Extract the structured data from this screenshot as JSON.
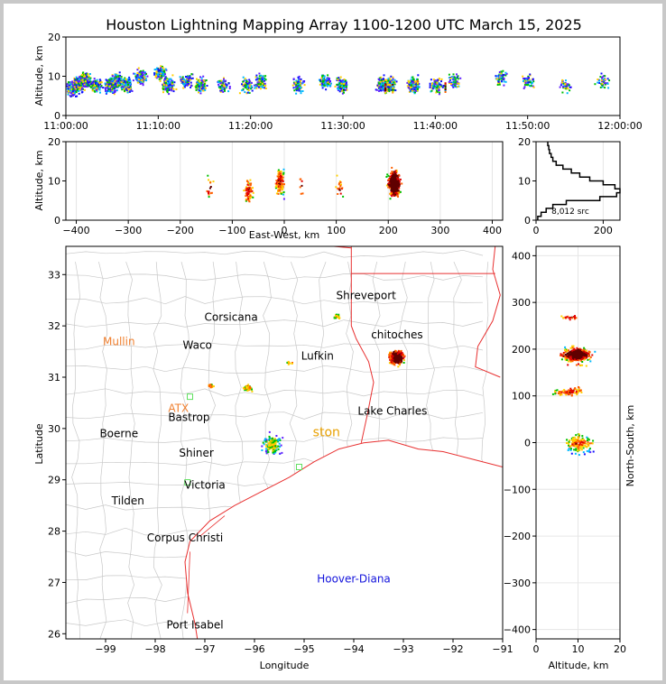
{
  "figure": {
    "title": "Houston Lightning Mapping Array 1100-1200 UTC March 15, 2025",
    "time_panel": {
      "ylabel": "Altitude, km",
      "yticks": [
        "0",
        "10",
        "20"
      ],
      "xticks": [
        "11:00:00",
        "11:10:00",
        "11:20:00",
        "11:30:00",
        "11:40:00",
        "11:50:00",
        "12:00:00"
      ]
    },
    "ew_panel": {
      "xlabel": "East-West, km",
      "ylabel": "Altitude, km",
      "xticks": [
        "−400",
        "−300",
        "−200",
        "−100",
        "0",
        "100",
        "200",
        "300",
        "400"
      ],
      "yticks": [
        "0",
        "10",
        "20"
      ]
    },
    "hist_panel": {
      "xticks": [
        "0",
        "200"
      ],
      "yticks": [
        "0",
        "10",
        "20"
      ],
      "count_label": "8,012 src"
    },
    "map_panel": {
      "xlabel": "Longitude",
      "ylabel": "Latitude",
      "xticks": [
        "−99",
        "−98",
        "−97",
        "−96",
        "−95",
        "−94",
        "−93",
        "−92",
        "−91"
      ],
      "yticks": [
        "26",
        "27",
        "28",
        "29",
        "30",
        "31",
        "32",
        "33"
      ],
      "cities": [
        {
          "name": "Shreveport",
          "lon": -93.75,
          "lat": 32.52
        },
        {
          "name": "Corsicana",
          "lon": -96.47,
          "lat": 32.1
        },
        {
          "name": "Waco",
          "lon": -97.15,
          "lat": 31.55
        },
        {
          "name": "Lufkin",
          "lon": -94.73,
          "lat": 31.34
        },
        {
          "name": "chitoches",
          "lon": -93.13,
          "lat": 31.76
        },
        {
          "name": "Lake Charles",
          "lon": -93.22,
          "lat": 30.27
        },
        {
          "name": "Boerne",
          "lon": -98.73,
          "lat": 29.83
        },
        {
          "name": "Bastrop",
          "lon": -97.32,
          "lat": 30.15
        },
        {
          "name": "Shiner",
          "lon": -97.17,
          "lat": 29.45
        },
        {
          "name": "Victoria",
          "lon": -97.0,
          "lat": 28.83
        },
        {
          "name": "Tilden",
          "lon": -98.55,
          "lat": 28.52
        },
        {
          "name": "Corpus Christi",
          "lon": -97.4,
          "lat": 27.8
        },
        {
          "name": "Port Isabel",
          "lon": -97.2,
          "lat": 26.1
        }
      ],
      "radar_labels": [
        {
          "name": "Mullin",
          "lon": -98.73,
          "lat": 31.62,
          "color": "#f08030"
        },
        {
          "name": "ATX",
          "lon": -97.53,
          "lat": 30.32,
          "color": "#f08030"
        },
        {
          "name": "ston",
          "lon": -94.55,
          "lat": 29.85,
          "color": "#e8a000"
        },
        {
          "name": "Hoover-Diana",
          "lon": -94.0,
          "lat": 27.0,
          "color": "#1414dc"
        }
      ]
    },
    "ns_panel": {
      "xlabel": "Altitude, km",
      "ylabel": "North-South, km",
      "xticks": [
        "0",
        "10",
        "20"
      ],
      "yticks": [
        "−400",
        "−300",
        "−200",
        "−100",
        "0",
        "100",
        "200",
        "300",
        "400"
      ]
    },
    "colors": {
      "state_border": "#e83030",
      "county_line": "#c8c8c8",
      "coast": "#e83030"
    }
  },
  "chart_data": {
    "type": "scatter",
    "title": "Houston Lightning Mapping Array 1100-1200 UTC March 15, 2025",
    "total_sources": 8012,
    "time_range": [
      "11:00:00",
      "12:00:00"
    ],
    "altitude_range_km": [
      0,
      20
    ],
    "ew_range_km": [
      -420,
      420
    ],
    "ns_range_km": [
      -420,
      420
    ],
    "lon_range": [
      -99.8,
      -91.0
    ],
    "lat_range": [
      25.9,
      33.55
    ],
    "clusters": [
      {
        "lon": -93.15,
        "lat": 31.4,
        "ew_km": 210,
        "ns_km": 190,
        "alt_km": 9.5,
        "n": 2400
      },
      {
        "lon": -96.15,
        "lat": 30.8,
        "ew_km": -70,
        "ns_km": 110,
        "alt_km": 7.5,
        "n": 420
      },
      {
        "lon": -96.9,
        "lat": 30.85,
        "ew_km": -145,
        "ns_km": 115,
        "alt_km": 8.5,
        "n": 90
      },
      {
        "lon": -95.65,
        "lat": 29.7,
        "ew_km": -10,
        "ns_km": 0,
        "alt_km": 10.0,
        "n": 900
      },
      {
        "lon": -94.35,
        "lat": 32.2,
        "ew_km": 105,
        "ns_km": 270,
        "alt_km": 8.0,
        "n": 110
      },
      {
        "lon": -95.3,
        "lat": 31.3,
        "ew_km": 30,
        "ns_km": 170,
        "alt_km": 9.0,
        "n": 40
      }
    ],
    "altitude_histogram": {
      "altitude_km": [
        0.5,
        1.5,
        2.5,
        3.5,
        4.5,
        5.5,
        6.5,
        7.5,
        8.5,
        9.5,
        10.5,
        11.5,
        12.5,
        13.5,
        14.5,
        15.5,
        16.5,
        17.5,
        18.5,
        19.5
      ],
      "counts": [
        5,
        15,
        30,
        50,
        90,
        190,
        240,
        250,
        235,
        200,
        160,
        130,
        105,
        80,
        60,
        50,
        45,
        40,
        38,
        35
      ]
    }
  }
}
